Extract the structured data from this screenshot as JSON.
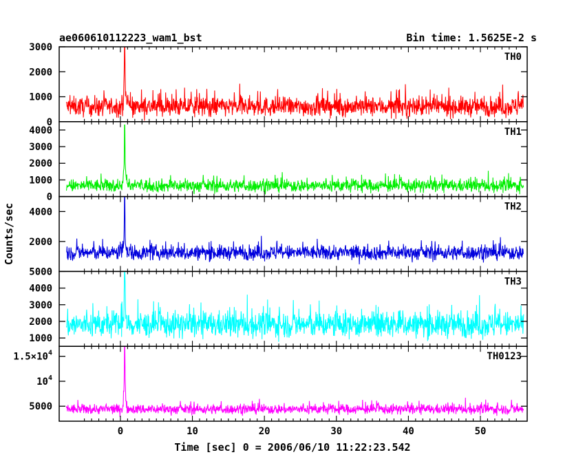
{
  "chart_data": {
    "type": "line",
    "title_left": "ae060610112223_wam1_bst",
    "title_right": "Bin time: 1.5625E-2 s",
    "xlabel": "Time [sec] 0 = 2006/06/10 11:22:23.542",
    "ylabel": "Counts/sec",
    "xlim": [
      -8.5,
      56.5
    ],
    "x_ticks": [
      0,
      10,
      20,
      30,
      40,
      50
    ],
    "x_tick_labels": [
      "0",
      "10",
      "20",
      "30",
      "40",
      "50"
    ],
    "grid": false,
    "panels": [
      {
        "name": "TH0",
        "color": "#ff0000",
        "ylim": [
          0,
          3000
        ],
        "y_ticks": [
          0,
          1000,
          2000,
          3000
        ],
        "y_tick_labels": [
          "0",
          "1000",
          "2000",
          "3000"
        ],
        "x_range": [
          -7.5,
          56
        ],
        "baseline_mean": 600,
        "baseline_spread": 550,
        "spike_x": 0.6,
        "spike_peak": 3000
      },
      {
        "name": "TH1",
        "color": "#00ee00",
        "ylim": [
          0,
          4500
        ],
        "y_ticks": [
          0,
          1000,
          2000,
          3000,
          4000
        ],
        "y_tick_labels": [
          "0",
          "1000",
          "2000",
          "3000",
          "4000"
        ],
        "x_range": [
          -7.5,
          56
        ],
        "baseline_mean": 650,
        "baseline_spread": 550,
        "spike_x": 0.6,
        "spike_peak": 4300
      },
      {
        "name": "TH2",
        "color": "#0000dd",
        "ylim": [
          0,
          5000
        ],
        "y_ticks": [
          2000,
          4000
        ],
        "y_tick_labels": [
          "2000",
          "4000"
        ],
        "x_range": [
          -7.5,
          56
        ],
        "baseline_mean": 1250,
        "baseline_spread": 700,
        "spike_x": 0.6,
        "spike_peak": 5000
      },
      {
        "name": "TH3",
        "color": "#00ffff",
        "ylim": [
          500,
          5000
        ],
        "y_ticks": [
          1000,
          2000,
          3000,
          4000,
          5000
        ],
        "y_tick_labels": [
          "1000",
          "2000",
          "3000",
          "4000",
          "5000"
        ],
        "x_range": [
          -7.5,
          56
        ],
        "baseline_mean": 1800,
        "baseline_spread": 1100,
        "spike_x": 0.6,
        "spike_peak": 5000
      },
      {
        "name": "TH0123",
        "color": "#ff00ff",
        "ylim": [
          2000,
          17000
        ],
        "y_ticks": [
          5000,
          10000,
          15000
        ],
        "y_tick_labels": [
          "5000",
          "10^4",
          "1.5×10^4"
        ],
        "x_range": [
          -7.5,
          56
        ],
        "baseline_mean": 4400,
        "baseline_spread": 1400,
        "spike_x": 0.6,
        "spike_peak": 17000
      }
    ]
  }
}
